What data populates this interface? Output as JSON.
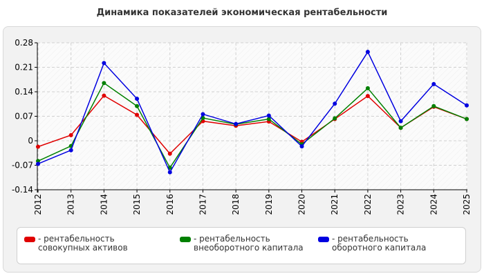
{
  "title": "Динамика показателей экономическая рентабельности",
  "chart_data": {
    "type": "line",
    "x": [
      "2012",
      "2013",
      "2014",
      "2015",
      "2016",
      "2017",
      "2018",
      "2019",
      "2020",
      "2021",
      "2022",
      "2023",
      "2024",
      "2025"
    ],
    "ylim": [
      -0.14,
      0.28
    ],
    "yticks": [
      -0.14,
      -0.07,
      0,
      0.07,
      0.14,
      0.21,
      0.28
    ],
    "ytick_labels": [
      "-0.14",
      "-0.07",
      "0",
      "0.07",
      "0.14",
      "0.21",
      "0.28"
    ],
    "grid": true,
    "legend_position": "bottom",
    "series": [
      {
        "name": "- рентабельность совокупных активов",
        "color": "#e00000",
        "values": [
          -0.017,
          0.016,
          0.129,
          0.074,
          -0.037,
          0.056,
          0.043,
          0.055,
          -0.003,
          0.062,
          0.128,
          0.037,
          0.097,
          0.062
        ]
      },
      {
        "name": "- рентабельность внеоборотного капитала",
        "color": "#008000",
        "values": [
          -0.058,
          -0.015,
          0.165,
          0.099,
          -0.077,
          0.065,
          0.047,
          0.062,
          -0.01,
          0.064,
          0.15,
          0.037,
          0.099,
          0.062
        ]
      },
      {
        "name": "- рентабельность оборотного капитала",
        "color": "#0000e0",
        "values": [
          -0.066,
          -0.027,
          0.222,
          0.12,
          -0.09,
          0.076,
          0.048,
          0.072,
          -0.016,
          0.106,
          0.254,
          0.056,
          0.162,
          0.101
        ]
      }
    ]
  }
}
